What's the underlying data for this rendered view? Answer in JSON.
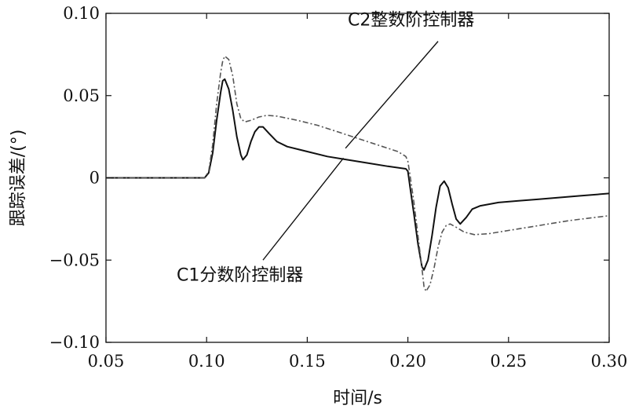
{
  "chart_data": {
    "type": "line",
    "xlabel": "时间/s",
    "ylabel": "跟踪误差/(°)",
    "xlim": [
      0.05,
      0.3
    ],
    "ylim": [
      -0.1,
      0.1
    ],
    "xticks": [
      "0.05",
      "0.10",
      "0.15",
      "0.20",
      "0.25",
      "0.30"
    ],
    "xtick_values": [
      0.05,
      0.1,
      0.15,
      0.2,
      0.25,
      0.3
    ],
    "yticks": [
      "0.10",
      "0.05",
      "0",
      "−0.05",
      "−0.10"
    ],
    "ytick_values": [
      0.1,
      0.05,
      0,
      -0.05,
      -0.1
    ],
    "grid": false,
    "series": [
      {
        "name": "C1分数阶控制器",
        "style": "solid",
        "color": "#111111",
        "points": [
          [
            0.05,
            0
          ],
          [
            0.099,
            0
          ],
          [
            0.101,
            0.003
          ],
          [
            0.103,
            0.015
          ],
          [
            0.105,
            0.035
          ],
          [
            0.107,
            0.052
          ],
          [
            0.108,
            0.059
          ],
          [
            0.109,
            0.06
          ],
          [
            0.111,
            0.054
          ],
          [
            0.113,
            0.041
          ],
          [
            0.115,
            0.025
          ],
          [
            0.117,
            0.014
          ],
          [
            0.118,
            0.011
          ],
          [
            0.12,
            0.014
          ],
          [
            0.122,
            0.022
          ],
          [
            0.124,
            0.028
          ],
          [
            0.126,
            0.031
          ],
          [
            0.128,
            0.031
          ],
          [
            0.131,
            0.027
          ],
          [
            0.135,
            0.022
          ],
          [
            0.14,
            0.019
          ],
          [
            0.15,
            0.016
          ],
          [
            0.16,
            0.013
          ],
          [
            0.17,
            0.011
          ],
          [
            0.18,
            0.009
          ],
          [
            0.19,
            0.007
          ],
          [
            0.199,
            0.0055
          ],
          [
            0.2,
            0.004
          ],
          [
            0.201,
            -0.005
          ],
          [
            0.203,
            -0.022
          ],
          [
            0.205,
            -0.04
          ],
          [
            0.207,
            -0.054
          ],
          [
            0.208,
            -0.056
          ],
          [
            0.21,
            -0.05
          ],
          [
            0.212,
            -0.035
          ],
          [
            0.214,
            -0.018
          ],
          [
            0.216,
            -0.005
          ],
          [
            0.218,
            -0.002
          ],
          [
            0.22,
            -0.006
          ],
          [
            0.222,
            -0.016
          ],
          [
            0.224,
            -0.025
          ],
          [
            0.226,
            -0.028
          ],
          [
            0.229,
            -0.024
          ],
          [
            0.232,
            -0.019
          ],
          [
            0.236,
            -0.017
          ],
          [
            0.245,
            -0.015
          ],
          [
            0.255,
            -0.014
          ],
          [
            0.265,
            -0.013
          ],
          [
            0.275,
            -0.012
          ],
          [
            0.285,
            -0.011
          ],
          [
            0.3,
            -0.0095
          ]
        ]
      },
      {
        "name": "C2整数阶控制器",
        "style": "dashdot",
        "color": "#555555",
        "points": [
          [
            0.05,
            0
          ],
          [
            0.099,
            0
          ],
          [
            0.101,
            0.004
          ],
          [
            0.103,
            0.02
          ],
          [
            0.105,
            0.045
          ],
          [
            0.107,
            0.064
          ],
          [
            0.108,
            0.071
          ],
          [
            0.109,
            0.074
          ],
          [
            0.111,
            0.072
          ],
          [
            0.113,
            0.062
          ],
          [
            0.115,
            0.045
          ],
          [
            0.117,
            0.036
          ],
          [
            0.119,
            0.034
          ],
          [
            0.122,
            0.035
          ],
          [
            0.126,
            0.037
          ],
          [
            0.13,
            0.038
          ],
          [
            0.135,
            0.0375
          ],
          [
            0.145,
            0.035
          ],
          [
            0.155,
            0.032
          ],
          [
            0.165,
            0.028
          ],
          [
            0.175,
            0.024
          ],
          [
            0.185,
            0.02
          ],
          [
            0.195,
            0.016
          ],
          [
            0.199,
            0.013
          ],
          [
            0.2,
            0.01
          ],
          [
            0.201,
            0.002
          ],
          [
            0.203,
            -0.015
          ],
          [
            0.205,
            -0.035
          ],
          [
            0.207,
            -0.055
          ],
          [
            0.208,
            -0.066
          ],
          [
            0.209,
            -0.069
          ],
          [
            0.211,
            -0.065
          ],
          [
            0.213,
            -0.055
          ],
          [
            0.215,
            -0.042
          ],
          [
            0.217,
            -0.033
          ],
          [
            0.219,
            -0.029
          ],
          [
            0.221,
            -0.028
          ],
          [
            0.224,
            -0.03
          ],
          [
            0.228,
            -0.033
          ],
          [
            0.233,
            -0.0345
          ],
          [
            0.24,
            -0.034
          ],
          [
            0.25,
            -0.032
          ],
          [
            0.26,
            -0.03
          ],
          [
            0.27,
            -0.028
          ],
          [
            0.28,
            -0.026
          ],
          [
            0.29,
            -0.0245
          ],
          [
            0.3,
            -0.023
          ]
        ]
      }
    ],
    "annotations": [
      {
        "text": "C2整数阶控制器",
        "target": [
          0.169,
          0.018
        ],
        "anchor_data": [
          0.215,
          0.083
        ]
      },
      {
        "text": "C1分数阶控制器",
        "target": [
          0.168,
          0.012
        ],
        "anchor_data": [
          0.128,
          -0.05
        ]
      }
    ]
  }
}
